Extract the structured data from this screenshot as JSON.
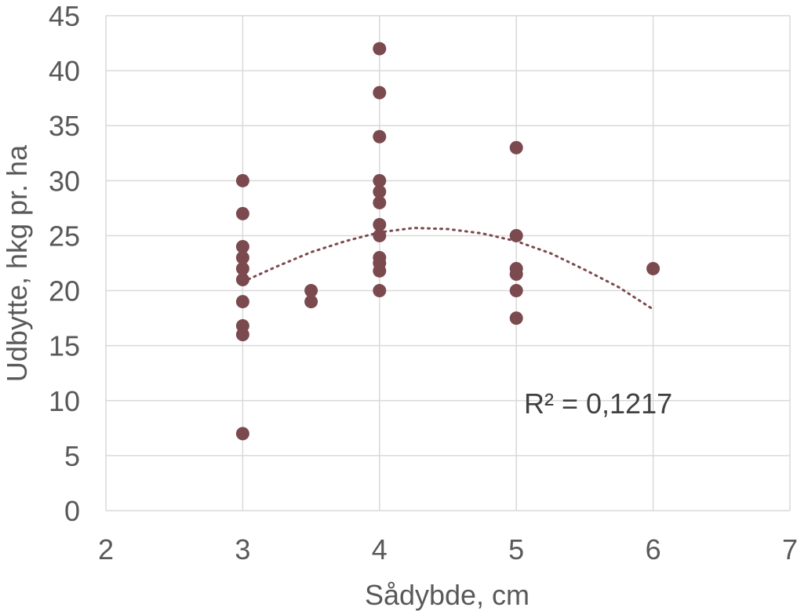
{
  "chart_data": {
    "type": "scatter",
    "xlabel": "Sådybde, cm",
    "ylabel": "Udbytte, hkg pr. ha",
    "xlim": [
      2,
      7
    ],
    "ylim": [
      0,
      45
    ],
    "x_ticks": [
      "2",
      "3",
      "4",
      "5",
      "6",
      "7"
    ],
    "y_ticks": [
      "0",
      "5",
      "10",
      "15",
      "20",
      "25",
      "30",
      "35",
      "40",
      "45"
    ],
    "grid": true,
    "marker_color": "#7b4a4e",
    "points": [
      {
        "x": 3,
        "y": 30
      },
      {
        "x": 3,
        "y": 27
      },
      {
        "x": 3,
        "y": 24
      },
      {
        "x": 3,
        "y": 23
      },
      {
        "x": 3,
        "y": 22
      },
      {
        "x": 3,
        "y": 21
      },
      {
        "x": 3,
        "y": 19
      },
      {
        "x": 3,
        "y": 16.8
      },
      {
        "x": 3,
        "y": 16
      },
      {
        "x": 3,
        "y": 7
      },
      {
        "x": 3.5,
        "y": 20
      },
      {
        "x": 3.5,
        "y": 19
      },
      {
        "x": 4,
        "y": 42
      },
      {
        "x": 4,
        "y": 38
      },
      {
        "x": 4,
        "y": 34
      },
      {
        "x": 4,
        "y": 30
      },
      {
        "x": 4,
        "y": 29
      },
      {
        "x": 4,
        "y": 28
      },
      {
        "x": 4,
        "y": 26
      },
      {
        "x": 4,
        "y": 25
      },
      {
        "x": 4,
        "y": 23
      },
      {
        "x": 4,
        "y": 22.5
      },
      {
        "x": 4,
        "y": 21.8
      },
      {
        "x": 4,
        "y": 20
      },
      {
        "x": 5,
        "y": 33
      },
      {
        "x": 5,
        "y": 25
      },
      {
        "x": 5,
        "y": 22
      },
      {
        "x": 5,
        "y": 21.5
      },
      {
        "x": 5,
        "y": 20
      },
      {
        "x": 5,
        "y": 17.5
      },
      {
        "x": 6,
        "y": 22
      }
    ],
    "trendline": {
      "type": "polynomial-2",
      "style": "dotted",
      "x_range": [
        3,
        6
      ],
      "points": [
        {
          "x": 3,
          "y": 20.8
        },
        {
          "x": 3.25,
          "y": 22.2
        },
        {
          "x": 3.5,
          "y": 23.5
        },
        {
          "x": 3.75,
          "y": 24.5
        },
        {
          "x": 4,
          "y": 25.3
        },
        {
          "x": 4.25,
          "y": 25.7
        },
        {
          "x": 4.5,
          "y": 25.6
        },
        {
          "x": 4.75,
          "y": 25.2
        },
        {
          "x": 5,
          "y": 24.5
        },
        {
          "x": 5.25,
          "y": 23.4
        },
        {
          "x": 5.5,
          "y": 21.9
        },
        {
          "x": 5.75,
          "y": 20.3
        },
        {
          "x": 6,
          "y": 18.3
        }
      ]
    },
    "annotation": "R² = 0,1217"
  }
}
